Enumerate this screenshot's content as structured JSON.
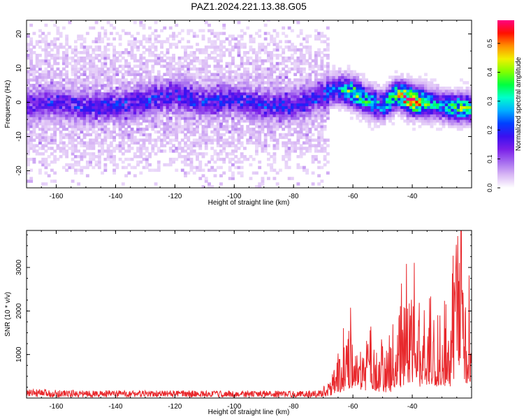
{
  "title": "PAZ1.2024.221.13.38.G05",
  "chart_data": [
    {
      "type": "heatmap",
      "xlabel": "Height of straight line (km)",
      "ylabel": "Frequency (Hz)",
      "xlim": [
        -170,
        -20
      ],
      "ylim": [
        -25,
        24
      ],
      "x_ticks": [
        -160,
        -140,
        -120,
        -100,
        -80,
        -60,
        -40
      ],
      "y_ticks": [
        -20,
        -10,
        0,
        10,
        20
      ],
      "colorbar": {
        "label": "Normalized spectral amplitude",
        "range": [
          0.0,
          0.58
        ],
        "ticks": [
          0.0,
          0.1,
          0.2,
          0.3,
          0.4,
          0.5
        ],
        "colormap": [
          "#ffffff",
          "#d9b8f5",
          "#a56bef",
          "#7a1fe8",
          "#3a10f0",
          "#0040ff",
          "#00b0ff",
          "#00ffcc",
          "#00ff40",
          "#80ff00",
          "#f0f000",
          "#ff9000",
          "#ff1000",
          "#ff0080"
        ]
      },
      "ridge": [
        {
          "x": -168,
          "freq": -1.0,
          "amp": 0.11
        },
        {
          "x": -160,
          "freq": 0.0,
          "amp": 0.12
        },
        {
          "x": -150,
          "freq": -1.5,
          "amp": 0.13
        },
        {
          "x": -140,
          "freq": -1.0,
          "amp": 0.14
        },
        {
          "x": -130,
          "freq": 0.5,
          "amp": 0.14
        },
        {
          "x": -120,
          "freq": 2.5,
          "amp": 0.15
        },
        {
          "x": -110,
          "freq": 0.0,
          "amp": 0.14
        },
        {
          "x": -100,
          "freq": 1.0,
          "amp": 0.14
        },
        {
          "x": -90,
          "freq": -1.0,
          "amp": 0.13
        },
        {
          "x": -80,
          "freq": -1.0,
          "amp": 0.12
        },
        {
          "x": -70,
          "freq": 2.5,
          "amp": 0.14
        },
        {
          "x": -65,
          "freq": 4.0,
          "amp": 0.24
        },
        {
          "x": -60,
          "freq": 3.0,
          "amp": 0.36
        },
        {
          "x": -55,
          "freq": 0.5,
          "amp": 0.28
        },
        {
          "x": -50,
          "freq": -1.0,
          "amp": 0.25
        },
        {
          "x": -45,
          "freq": 2.5,
          "amp": 0.37
        },
        {
          "x": -40,
          "freq": 0.5,
          "amp": 0.55
        },
        {
          "x": -35,
          "freq": 0.0,
          "amp": 0.32
        },
        {
          "x": -30,
          "freq": -1.0,
          "amp": 0.22
        },
        {
          "x": -25,
          "freq": -1.5,
          "amp": 0.34
        },
        {
          "x": -20,
          "freq": -1.5,
          "amp": 0.3
        }
      ]
    },
    {
      "type": "line",
      "xlabel": "Height of straight line (km)",
      "ylabel": "SNR (10 * v/v)",
      "xlim": [
        -170,
        -20
      ],
      "ylim": [
        0,
        3850
      ],
      "x_ticks": [
        -160,
        -140,
        -120,
        -100,
        -80,
        -60,
        -40
      ],
      "y_ticks": [
        1000,
        2000,
        3000
      ],
      "color": "#e8282c",
      "series": [
        {
          "x": [
            -170,
            -160,
            -150,
            -140,
            -130,
            -120,
            -110,
            -100,
            -90,
            -80,
            -72,
            -68,
            -66,
            -64,
            -62,
            -60,
            -58,
            -56,
            -54,
            -52,
            -50,
            -48,
            -46,
            -44,
            -42,
            -40,
            -38,
            -36,
            -34,
            -32,
            -30,
            -28,
            -26,
            -24,
            -22,
            -20
          ],
          "y": [
            150,
            140,
            130,
            130,
            125,
            130,
            125,
            120,
            125,
            120,
            130,
            250,
            500,
            700,
            1100,
            1600,
            1200,
            1000,
            1400,
            900,
            1100,
            700,
            1300,
            1600,
            2200,
            2400,
            1400,
            1800,
            2000,
            1200,
            1900,
            1300,
            2300,
            3850,
            1700,
            2500
          ]
        }
      ]
    }
  ]
}
